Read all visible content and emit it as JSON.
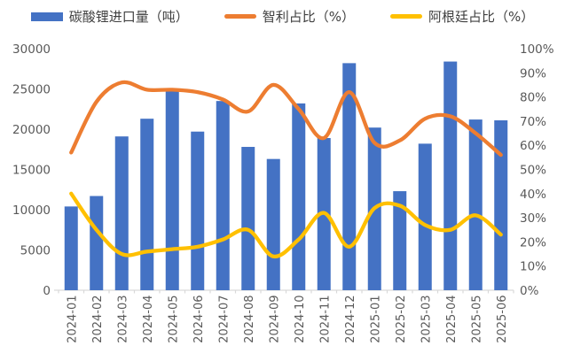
{
  "chart_data": {
    "type": "bar",
    "subtype": "bar-line-combo",
    "categories": [
      "2024-01",
      "2024-02",
      "2024-03",
      "2024-04",
      "2024-05",
      "2024-06",
      "2024-07",
      "2024-08",
      "2024-09",
      "2024-10",
      "2024-11",
      "2024-12",
      "2025-01",
      "2025-02",
      "2025-03",
      "2025-04",
      "2025-05",
      "2025-06"
    ],
    "series": [
      {
        "name": "碳酸锂进口量（吨）",
        "type": "bar",
        "axis": "left",
        "color": "#4472C4",
        "values": [
          10400,
          11700,
          19100,
          21300,
          24700,
          19700,
          23500,
          17800,
          16300,
          23200,
          18900,
          28200,
          20200,
          12300,
          18200,
          28400,
          21200,
          21100
        ]
      },
      {
        "name": "智利占比（%）",
        "type": "line",
        "axis": "right",
        "color": "#ED7D31",
        "values": [
          57,
          78,
          86,
          83,
          83,
          82,
          79,
          74,
          85,
          75,
          63,
          82,
          61,
          62,
          71,
          72,
          65,
          56
        ]
      },
      {
        "name": "阿根廷占比（%）",
        "type": "line",
        "axis": "right",
        "color": "#FFC000",
        "values": [
          40,
          25,
          15,
          16,
          17,
          18,
          21,
          25,
          14,
          21,
          32,
          18,
          34,
          35,
          27,
          25,
          31,
          23
        ]
      }
    ],
    "left_axis": {
      "min": 0,
      "max": 30000,
      "step": 5000,
      "ticks": [
        "0",
        "5000",
        "10000",
        "15000",
        "20000",
        "25000",
        "30000"
      ]
    },
    "right_axis": {
      "min": 0,
      "max": 100,
      "step": 10,
      "ticks": [
        "0%",
        "10%",
        "20%",
        "30%",
        "40%",
        "50%",
        "60%",
        "70%",
        "80%",
        "90%",
        "100%"
      ]
    },
    "legend_position": "top",
    "grid": false,
    "title": "",
    "xlabel": "",
    "ylabel": ""
  },
  "style": {
    "axis_text_color": "#595959",
    "legend_text_color": "#404040",
    "axis_line_color": "#D9D9D9",
    "background": "#FFFFFF"
  }
}
